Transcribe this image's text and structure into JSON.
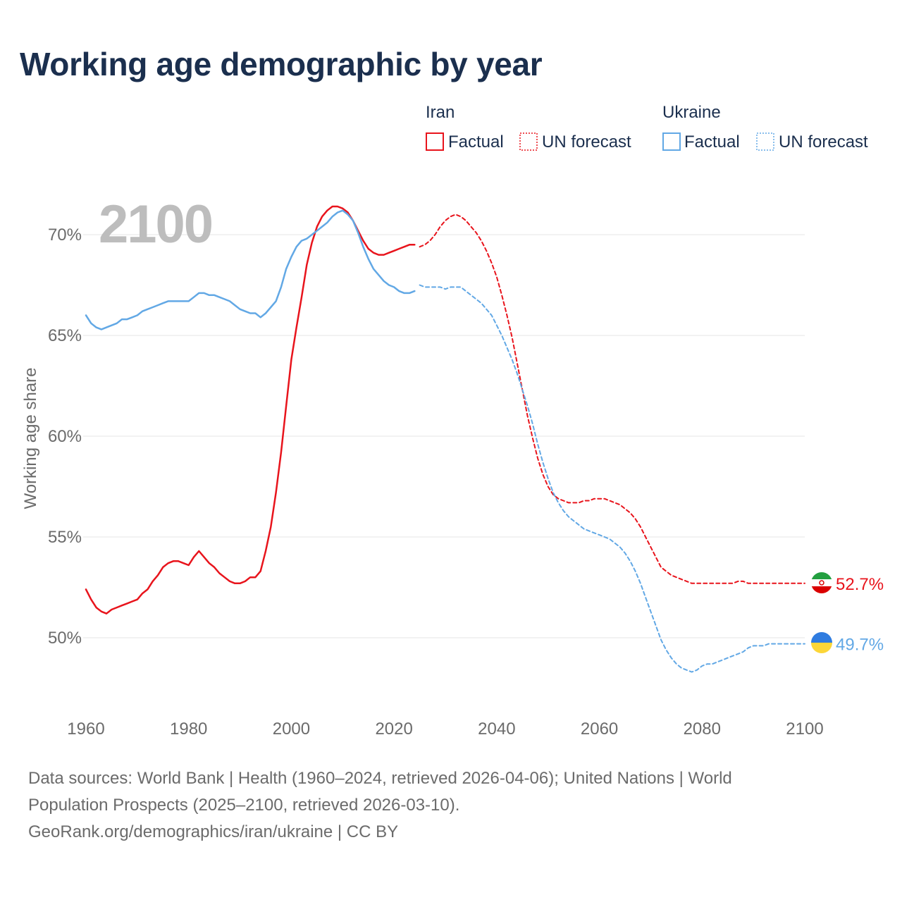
{
  "title": "Working age demographic by year",
  "year_overlay": "2100",
  "legend": {
    "groups": [
      {
        "name": "Iran",
        "color": "#e8141c",
        "items": [
          "Factual",
          "UN forecast"
        ]
      },
      {
        "name": "Ukraine",
        "color": "#62a8e5",
        "items": [
          "Factual",
          "UN forecast"
        ]
      }
    ]
  },
  "flags": [
    "flag-iran-icon",
    "flag-ukraine-icon"
  ],
  "chart_data": {
    "type": "line",
    "title": "Working age demographic by year",
    "xlabel": "",
    "ylabel": "Working age share",
    "xlim": [
      1960,
      2100
    ],
    "ylim": [
      47.5,
      72.5
    ],
    "x_ticks": [
      1960,
      1980,
      2000,
      2020,
      2040,
      2060,
      2080,
      2100
    ],
    "x_tick_labels": [
      "1960",
      "1980",
      "2000",
      "2020",
      "2040",
      "2060",
      "2080",
      "2100"
    ],
    "y_ticks": [
      50,
      55,
      60,
      65,
      70
    ],
    "y_tick_labels": [
      "50%",
      "55%",
      "60%",
      "65%",
      "70%"
    ],
    "grid": true,
    "series": [
      {
        "name": "Iran",
        "kind": "Factual",
        "color": "#e8141c",
        "style": "solid",
        "points": [
          [
            1960,
            52.4
          ],
          [
            1961,
            51.9
          ],
          [
            1962,
            51.5
          ],
          [
            1963,
            51.3
          ],
          [
            1964,
            51.2
          ],
          [
            1965,
            51.4
          ],
          [
            1966,
            51.5
          ],
          [
            1967,
            51.6
          ],
          [
            1968,
            51.7
          ],
          [
            1969,
            51.8
          ],
          [
            1970,
            51.9
          ],
          [
            1971,
            52.2
          ],
          [
            1972,
            52.4
          ],
          [
            1973,
            52.8
          ],
          [
            1974,
            53.1
          ],
          [
            1975,
            53.5
          ],
          [
            1976,
            53.7
          ],
          [
            1977,
            53.8
          ],
          [
            1978,
            53.8
          ],
          [
            1979,
            53.7
          ],
          [
            1980,
            53.6
          ],
          [
            1981,
            54.0
          ],
          [
            1982,
            54.3
          ],
          [
            1983,
            54.0
          ],
          [
            1984,
            53.7
          ],
          [
            1985,
            53.5
          ],
          [
            1986,
            53.2
          ],
          [
            1987,
            53.0
          ],
          [
            1988,
            52.8
          ],
          [
            1989,
            52.7
          ],
          [
            1990,
            52.7
          ],
          [
            1991,
            52.8
          ],
          [
            1992,
            53.0
          ],
          [
            1993,
            53.0
          ],
          [
            1994,
            53.3
          ],
          [
            1995,
            54.3
          ],
          [
            1996,
            55.5
          ],
          [
            1997,
            57.2
          ],
          [
            1998,
            59.2
          ],
          [
            1999,
            61.5
          ],
          [
            2000,
            63.8
          ],
          [
            2001,
            65.4
          ],
          [
            2002,
            66.9
          ],
          [
            2003,
            68.5
          ],
          [
            2004,
            69.6
          ],
          [
            2005,
            70.4
          ],
          [
            2006,
            70.9
          ],
          [
            2007,
            71.2
          ],
          [
            2008,
            71.4
          ],
          [
            2009,
            71.4
          ],
          [
            2010,
            71.3
          ],
          [
            2011,
            71.1
          ],
          [
            2012,
            70.7
          ],
          [
            2013,
            70.2
          ],
          [
            2014,
            69.7
          ],
          [
            2015,
            69.3
          ],
          [
            2016,
            69.1
          ],
          [
            2017,
            69.0
          ],
          [
            2018,
            69.0
          ],
          [
            2019,
            69.1
          ],
          [
            2020,
            69.2
          ],
          [
            2021,
            69.3
          ],
          [
            2022,
            69.4
          ],
          [
            2023,
            69.5
          ],
          [
            2024,
            69.5
          ]
        ]
      },
      {
        "name": "Iran",
        "kind": "UN forecast",
        "color": "#e8141c",
        "style": "dashed",
        "points": [
          [
            2025,
            69.4
          ],
          [
            2026,
            69.5
          ],
          [
            2027,
            69.7
          ],
          [
            2028,
            70.0
          ],
          [
            2029,
            70.4
          ],
          [
            2030,
            70.7
          ],
          [
            2031,
            70.9
          ],
          [
            2032,
            71.0
          ],
          [
            2033,
            70.9
          ],
          [
            2034,
            70.7
          ],
          [
            2035,
            70.4
          ],
          [
            2036,
            70.1
          ],
          [
            2037,
            69.7
          ],
          [
            2038,
            69.2
          ],
          [
            2039,
            68.6
          ],
          [
            2040,
            67.9
          ],
          [
            2041,
            67.0
          ],
          [
            2042,
            66.0
          ],
          [
            2043,
            64.9
          ],
          [
            2044,
            63.6
          ],
          [
            2045,
            62.3
          ],
          [
            2046,
            61.0
          ],
          [
            2047,
            59.9
          ],
          [
            2048,
            58.9
          ],
          [
            2049,
            58.1
          ],
          [
            2050,
            57.5
          ],
          [
            2051,
            57.1
          ],
          [
            2052,
            56.9
          ],
          [
            2053,
            56.8
          ],
          [
            2054,
            56.7
          ],
          [
            2055,
            56.7
          ],
          [
            2056,
            56.7
          ],
          [
            2057,
            56.8
          ],
          [
            2058,
            56.8
          ],
          [
            2059,
            56.9
          ],
          [
            2060,
            56.9
          ],
          [
            2061,
            56.9
          ],
          [
            2062,
            56.8
          ],
          [
            2063,
            56.7
          ],
          [
            2064,
            56.6
          ],
          [
            2065,
            56.4
          ],
          [
            2066,
            56.2
          ],
          [
            2067,
            55.9
          ],
          [
            2068,
            55.5
          ],
          [
            2069,
            55.0
          ],
          [
            2070,
            54.5
          ],
          [
            2071,
            54.0
          ],
          [
            2072,
            53.5
          ],
          [
            2073,
            53.3
          ],
          [
            2074,
            53.1
          ],
          [
            2075,
            53.0
          ],
          [
            2076,
            52.9
          ],
          [
            2077,
            52.8
          ],
          [
            2078,
            52.7
          ],
          [
            2079,
            52.7
          ],
          [
            2080,
            52.7
          ],
          [
            2081,
            52.7
          ],
          [
            2082,
            52.7
          ],
          [
            2083,
            52.7
          ],
          [
            2084,
            52.7
          ],
          [
            2085,
            52.7
          ],
          [
            2086,
            52.7
          ],
          [
            2087,
            52.8
          ],
          [
            2088,
            52.8
          ],
          [
            2089,
            52.7
          ],
          [
            2090,
            52.7
          ],
          [
            2091,
            52.7
          ],
          [
            2092,
            52.7
          ],
          [
            2093,
            52.7
          ],
          [
            2094,
            52.7
          ],
          [
            2095,
            52.7
          ],
          [
            2096,
            52.7
          ],
          [
            2097,
            52.7
          ],
          [
            2098,
            52.7
          ],
          [
            2099,
            52.7
          ],
          [
            2100,
            52.7
          ]
        ]
      },
      {
        "name": "Ukraine",
        "kind": "Factual",
        "color": "#62a8e5",
        "style": "solid",
        "points": [
          [
            1960,
            66.0
          ],
          [
            1961,
            65.6
          ],
          [
            1962,
            65.4
          ],
          [
            1963,
            65.3
          ],
          [
            1964,
            65.4
          ],
          [
            1965,
            65.5
          ],
          [
            1966,
            65.6
          ],
          [
            1967,
            65.8
          ],
          [
            1968,
            65.8
          ],
          [
            1969,
            65.9
          ],
          [
            1970,
            66.0
          ],
          [
            1971,
            66.2
          ],
          [
            1972,
            66.3
          ],
          [
            1973,
            66.4
          ],
          [
            1974,
            66.5
          ],
          [
            1975,
            66.6
          ],
          [
            1976,
            66.7
          ],
          [
            1977,
            66.7
          ],
          [
            1978,
            66.7
          ],
          [
            1979,
            66.7
          ],
          [
            1980,
            66.7
          ],
          [
            1981,
            66.9
          ],
          [
            1982,
            67.1
          ],
          [
            1983,
            67.1
          ],
          [
            1984,
            67.0
          ],
          [
            1985,
            67.0
          ],
          [
            1986,
            66.9
          ],
          [
            1987,
            66.8
          ],
          [
            1988,
            66.7
          ],
          [
            1989,
            66.5
          ],
          [
            1990,
            66.3
          ],
          [
            1991,
            66.2
          ],
          [
            1992,
            66.1
          ],
          [
            1993,
            66.1
          ],
          [
            1994,
            65.9
          ],
          [
            1995,
            66.1
          ],
          [
            1996,
            66.4
          ],
          [
            1997,
            66.7
          ],
          [
            1998,
            67.4
          ],
          [
            1999,
            68.3
          ],
          [
            2000,
            68.9
          ],
          [
            2001,
            69.4
          ],
          [
            2002,
            69.7
          ],
          [
            2003,
            69.8
          ],
          [
            2004,
            70.0
          ],
          [
            2005,
            70.2
          ],
          [
            2006,
            70.4
          ],
          [
            2007,
            70.6
          ],
          [
            2008,
            70.9
          ],
          [
            2009,
            71.1
          ],
          [
            2010,
            71.2
          ],
          [
            2011,
            71.0
          ],
          [
            2012,
            70.7
          ],
          [
            2013,
            70.1
          ],
          [
            2014,
            69.4
          ],
          [
            2015,
            68.8
          ],
          [
            2016,
            68.3
          ],
          [
            2017,
            68.0
          ],
          [
            2018,
            67.7
          ],
          [
            2019,
            67.5
          ],
          [
            2020,
            67.4
          ],
          [
            2021,
            67.2
          ],
          [
            2022,
            67.1
          ],
          [
            2023,
            67.1
          ],
          [
            2024,
            67.2
          ]
        ]
      },
      {
        "name": "Ukraine",
        "kind": "UN forecast",
        "color": "#62a8e5",
        "style": "dashed",
        "points": [
          [
            2025,
            67.5
          ],
          [
            2026,
            67.4
          ],
          [
            2027,
            67.4
          ],
          [
            2028,
            67.4
          ],
          [
            2029,
            67.4
          ],
          [
            2030,
            67.3
          ],
          [
            2031,
            67.4
          ],
          [
            2032,
            67.4
          ],
          [
            2033,
            67.4
          ],
          [
            2034,
            67.2
          ],
          [
            2035,
            67.0
          ],
          [
            2036,
            66.8
          ],
          [
            2037,
            66.6
          ],
          [
            2038,
            66.3
          ],
          [
            2039,
            66.0
          ],
          [
            2040,
            65.5
          ],
          [
            2041,
            65.0
          ],
          [
            2042,
            64.4
          ],
          [
            2043,
            63.8
          ],
          [
            2044,
            63.1
          ],
          [
            2045,
            62.3
          ],
          [
            2046,
            61.5
          ],
          [
            2047,
            60.6
          ],
          [
            2048,
            59.6
          ],
          [
            2049,
            58.7
          ],
          [
            2050,
            57.9
          ],
          [
            2051,
            57.2
          ],
          [
            2052,
            56.7
          ],
          [
            2053,
            56.3
          ],
          [
            2054,
            56.0
          ],
          [
            2055,
            55.8
          ],
          [
            2056,
            55.6
          ],
          [
            2057,
            55.4
          ],
          [
            2058,
            55.3
          ],
          [
            2059,
            55.2
          ],
          [
            2060,
            55.1
          ],
          [
            2061,
            55.0
          ],
          [
            2062,
            54.9
          ],
          [
            2063,
            54.7
          ],
          [
            2064,
            54.5
          ],
          [
            2065,
            54.2
          ],
          [
            2066,
            53.8
          ],
          [
            2067,
            53.3
          ],
          [
            2068,
            52.7
          ],
          [
            2069,
            52.0
          ],
          [
            2070,
            51.3
          ],
          [
            2071,
            50.6
          ],
          [
            2072,
            49.9
          ],
          [
            2073,
            49.4
          ],
          [
            2074,
            49.0
          ],
          [
            2075,
            48.7
          ],
          [
            2076,
            48.5
          ],
          [
            2077,
            48.4
          ],
          [
            2078,
            48.3
          ],
          [
            2079,
            48.4
          ],
          [
            2080,
            48.6
          ],
          [
            2081,
            48.7
          ],
          [
            2082,
            48.7
          ],
          [
            2083,
            48.8
          ],
          [
            2084,
            48.9
          ],
          [
            2085,
            49.0
          ],
          [
            2086,
            49.1
          ],
          [
            2087,
            49.2
          ],
          [
            2088,
            49.3
          ],
          [
            2089,
            49.5
          ],
          [
            2090,
            49.6
          ],
          [
            2091,
            49.6
          ],
          [
            2092,
            49.6
          ],
          [
            2093,
            49.7
          ],
          [
            2094,
            49.7
          ],
          [
            2095,
            49.7
          ],
          [
            2096,
            49.7
          ],
          [
            2097,
            49.7
          ],
          [
            2098,
            49.7
          ],
          [
            2099,
            49.7
          ],
          [
            2100,
            49.7
          ]
        ]
      }
    ],
    "end_labels": [
      {
        "name": "Iran",
        "value": 52.7,
        "label": "52.7%",
        "color": "#e8141c"
      },
      {
        "name": "Ukraine",
        "value": 49.7,
        "label": "49.7%",
        "color": "#62a8e5"
      }
    ]
  },
  "footer": {
    "sources_line1": "Data sources: World Bank | Health (1960–2024, retrieved 2026-04-06); United Nations | World",
    "sources_line2": "Population Prospects (2025–2100, retrieved 2026-03-10).",
    "attribution": "GeoRank.org/demographics/iran/ukraine | CC BY"
  }
}
